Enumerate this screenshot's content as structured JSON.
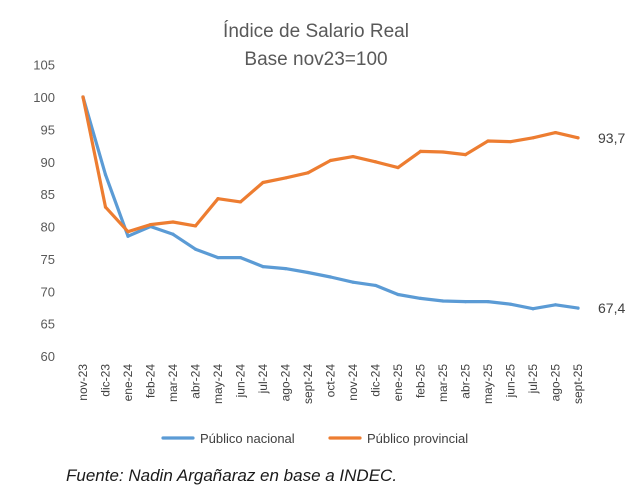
{
  "chart_data": {
    "type": "line",
    "title": "Índice de Salario Real",
    "subtitle": "Base nov23=100",
    "xlabel": "",
    "ylabel": "",
    "ylim": [
      60,
      105
    ],
    "yticks": [
      "60",
      "65",
      "70",
      "75",
      "80",
      "85",
      "90",
      "95",
      "100",
      "105"
    ],
    "grid": false,
    "legend_position": "bottom",
    "categories": [
      "nov-23",
      "dic-23",
      "ene-24",
      "feb-24",
      "mar-24",
      "abr-24",
      "may-24",
      "jun-24",
      "jul-24",
      "ago-24",
      "sept-24",
      "oct-24",
      "nov-24",
      "dic-24",
      "ene-25",
      "feb-25",
      "mar-25",
      "abr-25",
      "may-25",
      "jun-25",
      "jul-25",
      "ago-25",
      "sept-25"
    ],
    "series": [
      {
        "name": "Público nacional",
        "color": "#5B9BD5",
        "values": [
          100,
          88.0,
          78.5,
          80.0,
          78.8,
          76.5,
          75.2,
          75.2,
          73.8,
          73.5,
          72.9,
          72.2,
          71.4,
          70.9,
          69.5,
          68.9,
          68.5,
          68.4,
          68.4,
          68.0,
          67.3,
          67.9,
          67.4
        ],
        "end_label": "67,4"
      },
      {
        "name": "Público provincial",
        "color": "#ED7D31",
        "values": [
          100,
          83.0,
          79.2,
          80.3,
          80.7,
          80.1,
          84.3,
          83.8,
          86.8,
          87.5,
          88.3,
          90.2,
          90.8,
          90.0,
          89.1,
          91.6,
          91.5,
          91.1,
          93.2,
          93.1,
          93.7,
          94.5,
          93.7
        ],
        "end_label": "93,7"
      }
    ]
  },
  "source": "Fuente: Nadin Argañaraz en base a INDEC."
}
